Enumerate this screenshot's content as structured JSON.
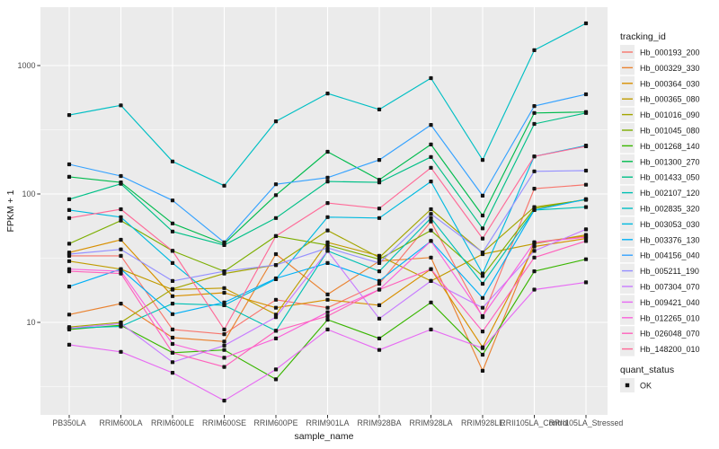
{
  "chart_data": {
    "type": "line",
    "title": "",
    "xlabel": "sample_name",
    "ylabel": "FPKM + 1",
    "legend_title": "tracking_id",
    "point_legend_title": "quant_status",
    "point_legend_label": "OK",
    "y_scale": "log10",
    "y_ticks": [
      10,
      100,
      1000
    ],
    "y_tick_labels": [
      "10",
      "100",
      "1000"
    ],
    "y_minor_breaks": [
      3.162,
      31.623,
      316.23,
      3162.3
    ],
    "ylim": [
      1.9,
      2850
    ],
    "grid": true,
    "legend_position": "right",
    "panel_bg": "#EBEBEB",
    "grid_color": "#FFFFFF",
    "legend_key_bg": "#ECECEC",
    "point_color": "#141414",
    "axis_text_color": "#4D4D4D",
    "title_text_color": "#1A1A1A",
    "categories": [
      "PB350LA",
      "RRIM600LA",
      "RRIM600LE",
      "RRIM600SE",
      "RRIM600PE",
      "RRIM901LA",
      "RRIM928BA",
      "RRIM928LA",
      "RRIM928LE",
      "RRII105LA_Control",
      "RRII105LA_Stressed"
    ],
    "series": [
      {
        "name": "Hb_000193_200",
        "color": "#F8766D",
        "values": [
          33,
          33,
          8.8,
          8.1,
          15,
          13,
          20,
          61,
          11,
          110,
          118
        ]
      },
      {
        "name": "Hb_000329_330",
        "color": "#EA8331",
        "values": [
          11.5,
          14,
          7.6,
          7.1,
          34,
          16.5,
          30,
          32,
          4.2,
          42,
          47
        ]
      },
      {
        "name": "Hb_000364_030",
        "color": "#D89000",
        "values": [
          35,
          44,
          16,
          17,
          13,
          15,
          13.6,
          26,
          6.4,
          39,
          45
        ]
      },
      {
        "name": "Hb_000365_080",
        "color": "#C09B00",
        "values": [
          30,
          26,
          18,
          18.5,
          11.5,
          42,
          33,
          21,
          34,
          41,
          48
        ]
      },
      {
        "name": "Hb_001016_090",
        "color": "#A3A500",
        "values": [
          9.2,
          10,
          18.2,
          24,
          28,
          52,
          32,
          76,
          35,
          79,
          90
        ]
      },
      {
        "name": "Hb_001045_080",
        "color": "#7CAE00",
        "values": [
          41,
          62,
          36,
          25,
          47,
          40,
          31,
          52,
          23,
          77,
          91
        ]
      },
      {
        "name": "Hb_001268_140",
        "color": "#39B600",
        "values": [
          8.8,
          9.5,
          5.8,
          6.1,
          3.6,
          10.5,
          7.5,
          14.3,
          5.6,
          25,
          31
        ]
      },
      {
        "name": "Hb_001300_270",
        "color": "#00BB4E",
        "values": [
          136,
          123,
          59,
          41,
          98,
          213,
          129,
          243,
          68,
          427,
          435
        ]
      },
      {
        "name": "Hb_001433_050",
        "color": "#00C087",
        "values": [
          91,
          120,
          51,
          40,
          65,
          125,
          123,
          194,
          54,
          351,
          427
        ]
      },
      {
        "name": "Hb_002107_120",
        "color": "#00C0B4",
        "values": [
          9.0,
          9.3,
          14,
          13.6,
          8.6,
          36,
          25,
          65,
          20,
          75,
          79
        ]
      },
      {
        "name": "Hb_002835_320",
        "color": "#00BFC4",
        "values": [
          412,
          490,
          179,
          116,
          368,
          606,
          455,
          798,
          184,
          1316,
          2133
        ]
      },
      {
        "name": "Hb_003053_030",
        "color": "#00BAE0",
        "values": [
          75,
          66,
          29,
          13.6,
          21.7,
          66,
          65,
          125,
          24,
          196,
          238
        ]
      },
      {
        "name": "Hb_003376_130",
        "color": "#00B0F6",
        "values": [
          19,
          26,
          11.6,
          14.3,
          22,
          29,
          21,
          43,
          15.5,
          75,
          91
        ]
      },
      {
        "name": "Hb_004156_040",
        "color": "#35A2FF",
        "values": [
          170,
          138,
          89,
          42,
          119,
          134,
          184,
          345,
          97,
          484,
          597
        ]
      },
      {
        "name": "Hb_005211_190",
        "color": "#9590FF",
        "values": [
          34,
          37,
          21,
          25,
          28,
          38,
          29,
          70,
          35,
          150,
          152
        ]
      },
      {
        "name": "Hb_007304_070",
        "color": "#C77CFF",
        "values": [
          9.0,
          9.8,
          4.9,
          6.6,
          11,
          36,
          10.7,
          21,
          13,
          36,
          53
        ]
      },
      {
        "name": "Hb_009421_040",
        "color": "#E76BF3",
        "values": [
          6.7,
          5.9,
          4.05,
          2.46,
          4.3,
          8.8,
          6.1,
          8.8,
          6.3,
          18,
          20.5
        ]
      },
      {
        "name": "Hb_012265_010",
        "color": "#FA62DB",
        "values": [
          26,
          25,
          6.8,
          5.3,
          7.5,
          12,
          18,
          43,
          11.2,
          42,
          46
        ]
      },
      {
        "name": "Hb_026048_070",
        "color": "#FF62BC",
        "values": [
          25,
          24,
          5.8,
          4.5,
          8.6,
          11.2,
          18,
          26,
          8.5,
          32,
          43
        ]
      },
      {
        "name": "Hb_148200_010",
        "color": "#FF6A98",
        "values": [
          65,
          76,
          36,
          8.8,
          47,
          85,
          77,
          160,
          45,
          196,
          235
        ]
      }
    ]
  }
}
